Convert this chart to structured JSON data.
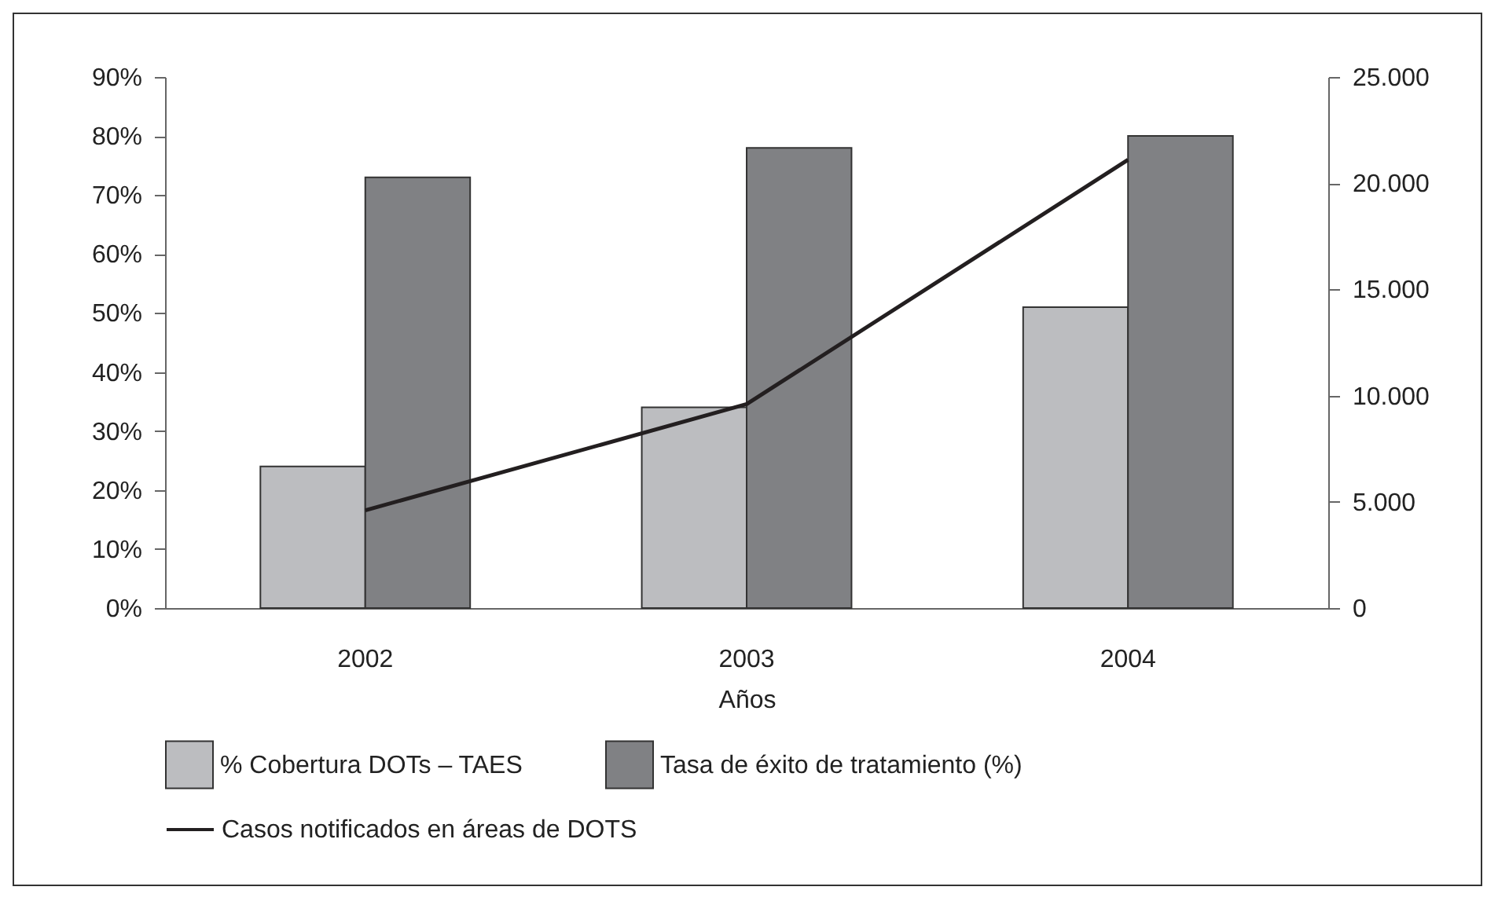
{
  "chart_data": {
    "type": "bar",
    "categories": [
      "2002",
      "2003",
      "2004"
    ],
    "xlabel": "Años",
    "series": [
      {
        "name": "% Cobertura DOTs – TAES",
        "color": "#bcbdc0",
        "values": [
          24,
          34,
          51
        ]
      },
      {
        "name": "Tasa de éxito de tratamiento (%)",
        "color": "#808184",
        "values": [
          73,
          78,
          80
        ]
      },
      {
        "name": "Casos notificados en áreas de DOTS",
        "type": "line",
        "axis": "y2",
        "color": "#231f20",
        "values": [
          4600,
          9600,
          21100
        ]
      }
    ],
    "ylim": [
      0,
      90
    ],
    "yticks": [
      {
        "value": 0,
        "label": "0%"
      },
      {
        "value": 10,
        "label": "10%"
      },
      {
        "value": 20,
        "label": "20%"
      },
      {
        "value": 30,
        "label": "30%"
      },
      {
        "value": 40,
        "label": "40%"
      },
      {
        "value": 50,
        "label": "50%"
      },
      {
        "value": 60,
        "label": "60%"
      },
      {
        "value": 70,
        "label": "70%"
      },
      {
        "value": 80,
        "label": "80%"
      },
      {
        "value": 90,
        "label": "90%"
      }
    ],
    "y2lim": [
      0,
      25000
    ],
    "y2ticks": [
      0,
      {
        "value": 5000,
        "label": "5.000"
      },
      {
        "value": 10000,
        "label": "10.000"
      },
      {
        "value": 15000,
        "label": "15.000"
      },
      {
        "value": 20000,
        "label": "20.000"
      },
      {
        "value": 25000,
        "label": "25.000"
      }
    ],
    "grid": false,
    "legend": "bottom"
  }
}
